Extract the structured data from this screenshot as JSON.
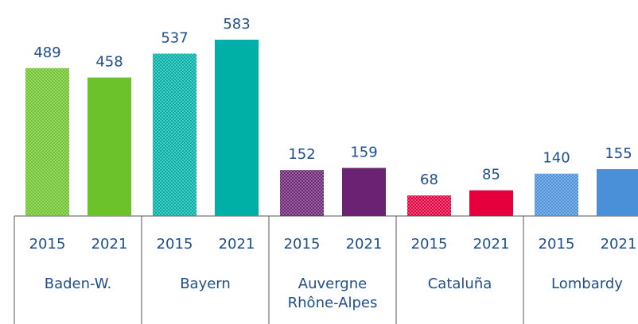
{
  "chart_data": {
    "type": "bar",
    "categories": [
      "Baden-W.",
      "Bayern",
      "Auvergne\nRhône-Alpes",
      "Cataluña",
      "Lombardy"
    ],
    "colors": [
      "#6cc22b",
      "#00afa5",
      "#6b2272",
      "#e5003d",
      "#4a90d9"
    ],
    "series": [
      {
        "name": "2015",
        "pattern": "dots",
        "values": [
          489,
          537,
          152,
          68,
          140
        ]
      },
      {
        "name": "2021",
        "pattern": "solid",
        "values": [
          458,
          583,
          159,
          85,
          155
        ]
      }
    ]
  }
}
